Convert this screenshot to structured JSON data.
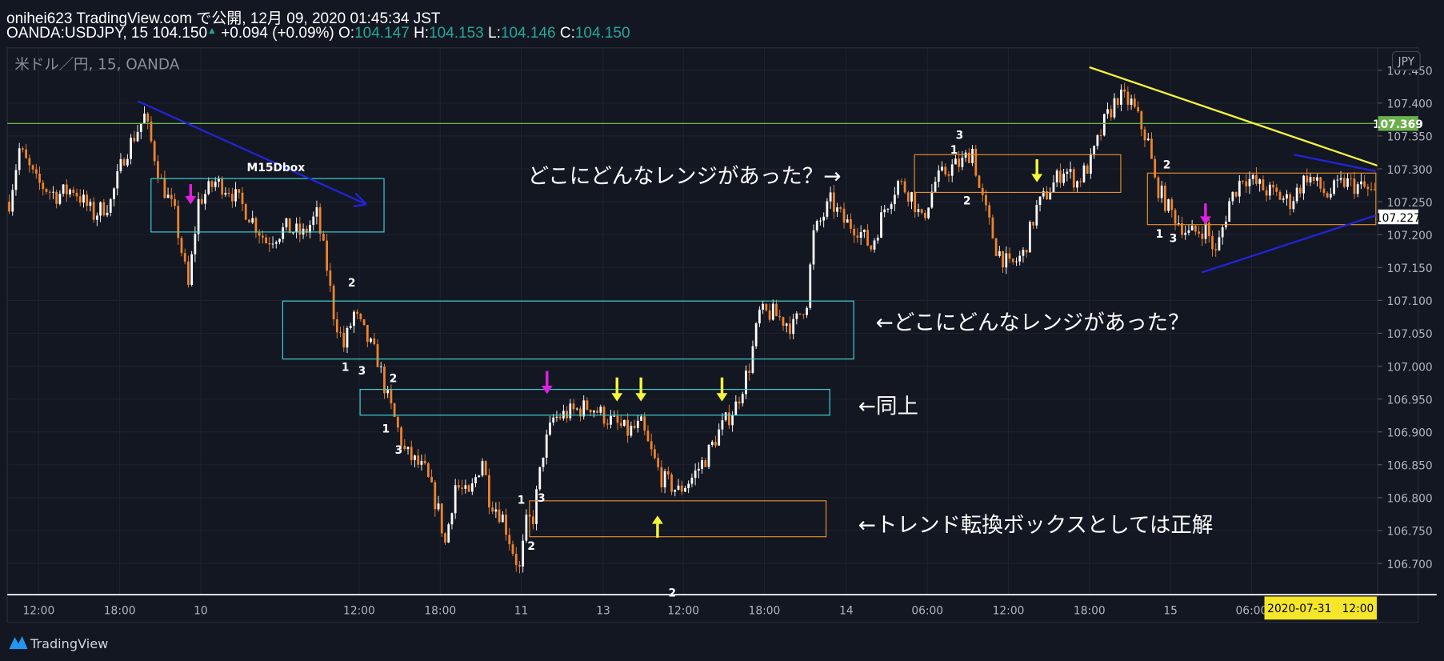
{
  "header": {
    "publish_line": "onihei623 TradingView.com で公開, 12月 09, 2020 01:45:34 JST",
    "symbol": "OANDA:USDJPY, 15",
    "last": "104.150",
    "change": "+0.094 (+0.09%)",
    "o_label": "O:",
    "o": "104.147",
    "h_label": "H:",
    "h": "104.153",
    "l_label": "L:",
    "l": "104.146",
    "c_label": "C:",
    "c": "104.150"
  },
  "watermark": "米ドル／円, 15, OANDA",
  "currency_button": "JPY",
  "crosshair_date": "2020-07-31   12:00",
  "logo": "TradingView",
  "colors": {
    "background": "#131722",
    "up_candle": "#ffffff",
    "down_candle": "#f0842c",
    "hline": "#6ab04c",
    "trend_yellow": "#f5f53a",
    "trend_blue": "#2323d8",
    "box_cyan": "#3dd6d6",
    "box_orange": "#e8912a",
    "arrow_magenta": "#e020e0",
    "arrow_yellow": "#f5f53a"
  },
  "chart_data": {
    "type": "candlestick",
    "symbol": "OANDA:USDJPY",
    "timeframe": "15",
    "ylim": [
      106.66,
      107.46
    ],
    "y_ticks": [
      "107.450",
      "107.400",
      "107.350",
      "107.300",
      "107.250",
      "107.200",
      "107.150",
      "107.100",
      "107.050",
      "107.000",
      "106.950",
      "106.900",
      "106.850",
      "106.800",
      "106.750",
      "106.700"
    ],
    "x_ticks": [
      "12:00",
      "18:00",
      "10",
      "12:00",
      "18:00",
      "11",
      "13",
      "12:00",
      "18:00",
      "14",
      "06:00",
      "12:00",
      "18:00",
      "15",
      "06:00"
    ],
    "close_path": [
      [
        0,
        107.25
      ],
      [
        3,
        107.33
      ],
      [
        8,
        107.28
      ],
      [
        14,
        107.26
      ],
      [
        19,
        107.27
      ],
      [
        25,
        107.23
      ],
      [
        30,
        107.25
      ],
      [
        34,
        107.32
      ],
      [
        40,
        107.38
      ],
      [
        45,
        107.28
      ],
      [
        49,
        107.23
      ],
      [
        53,
        107.12
      ],
      [
        56,
        107.25
      ],
      [
        61,
        107.28
      ],
      [
        65,
        107.27
      ],
      [
        71,
        107.23
      ],
      [
        76,
        107.19
      ],
      [
        82,
        107.21
      ],
      [
        87,
        107.2
      ],
      [
        91,
        107.23
      ],
      [
        94,
        107.15
      ],
      [
        96,
        107.08
      ],
      [
        99,
        107.03
      ],
      [
        102,
        107.08
      ],
      [
        106,
        107.04
      ],
      [
        109,
        107.01
      ],
      [
        112,
        106.95
      ],
      [
        114,
        106.92
      ],
      [
        117,
        106.87
      ],
      [
        123,
        106.84
      ],
      [
        127,
        106.78
      ],
      [
        129,
        106.73
      ],
      [
        132,
        106.82
      ],
      [
        136,
        106.8
      ],
      [
        140,
        106.86
      ],
      [
        142,
        106.8
      ],
      [
        146,
        106.77
      ],
      [
        149,
        106.72
      ],
      [
        151,
        106.69
      ],
      [
        153,
        106.76
      ],
      [
        155,
        106.77
      ],
      [
        158,
        106.87
      ],
      [
        161,
        106.92
      ],
      [
        166,
        106.93
      ],
      [
        172,
        106.94
      ],
      [
        177,
        106.92
      ],
      [
        183,
        106.9
      ],
      [
        187,
        106.91
      ],
      [
        189,
        106.88
      ],
      [
        193,
        106.83
      ],
      [
        198,
        106.81
      ],
      [
        202,
        106.83
      ],
      [
        206,
        106.86
      ],
      [
        210,
        106.9
      ],
      [
        215,
        106.94
      ],
      [
        219,
        107.0
      ],
      [
        222,
        107.08
      ],
      [
        226,
        107.08
      ],
      [
        232,
        107.06
      ],
      [
        236,
        107.1
      ],
      [
        238,
        107.2
      ],
      [
        243,
        107.25
      ],
      [
        247,
        107.22
      ],
      [
        251,
        107.21
      ],
      [
        255,
        107.18
      ],
      [
        259,
        107.24
      ],
      [
        263,
        107.28
      ],
      [
        267,
        107.26
      ],
      [
        270,
        107.22
      ],
      [
        274,
        107.28
      ],
      [
        278,
        107.3
      ],
      [
        282,
        107.31
      ],
      [
        285,
        107.33
      ],
      [
        287,
        107.27
      ],
      [
        292,
        107.18
      ],
      [
        296,
        107.15
      ],
      [
        300,
        107.17
      ],
      [
        304,
        107.24
      ],
      [
        308,
        107.27
      ],
      [
        312,
        107.3
      ],
      [
        316,
        107.28
      ],
      [
        320,
        107.31
      ],
      [
        324,
        107.37
      ],
      [
        328,
        107.41
      ],
      [
        332,
        107.4
      ],
      [
        337,
        107.34
      ],
      [
        339,
        107.28
      ],
      [
        343,
        107.24
      ],
      [
        349,
        107.2
      ],
      [
        354,
        107.21
      ],
      [
        357,
        107.17
      ],
      [
        361,
        107.25
      ],
      [
        365,
        107.29
      ],
      [
        371,
        107.27
      ],
      [
        375,
        107.26
      ],
      [
        379,
        107.25
      ],
      [
        384,
        107.29
      ],
      [
        390,
        107.26
      ],
      [
        395,
        107.28
      ],
      [
        401,
        107.27
      ],
      [
        404,
        107.26
      ]
    ],
    "horizontal_line": {
      "price": 107.369,
      "label": "107.369"
    },
    "price_marker": {
      "price": 107.227,
      "label": "107.227"
    },
    "annotations": {
      "box_label": "M15Dbox",
      "note1": "どこにどんなレンジがあった？→",
      "note2": "←どこにどんなレンジがあった？",
      "note3": "←同上",
      "note4": "←トレンド転換ボックスとしては正解",
      "wave_labels": [
        "2",
        "1",
        "3",
        "2",
        "1",
        "3",
        "1",
        "3",
        "2",
        "2",
        "3",
        "1",
        "2",
        "2",
        "1",
        "3"
      ]
    }
  }
}
